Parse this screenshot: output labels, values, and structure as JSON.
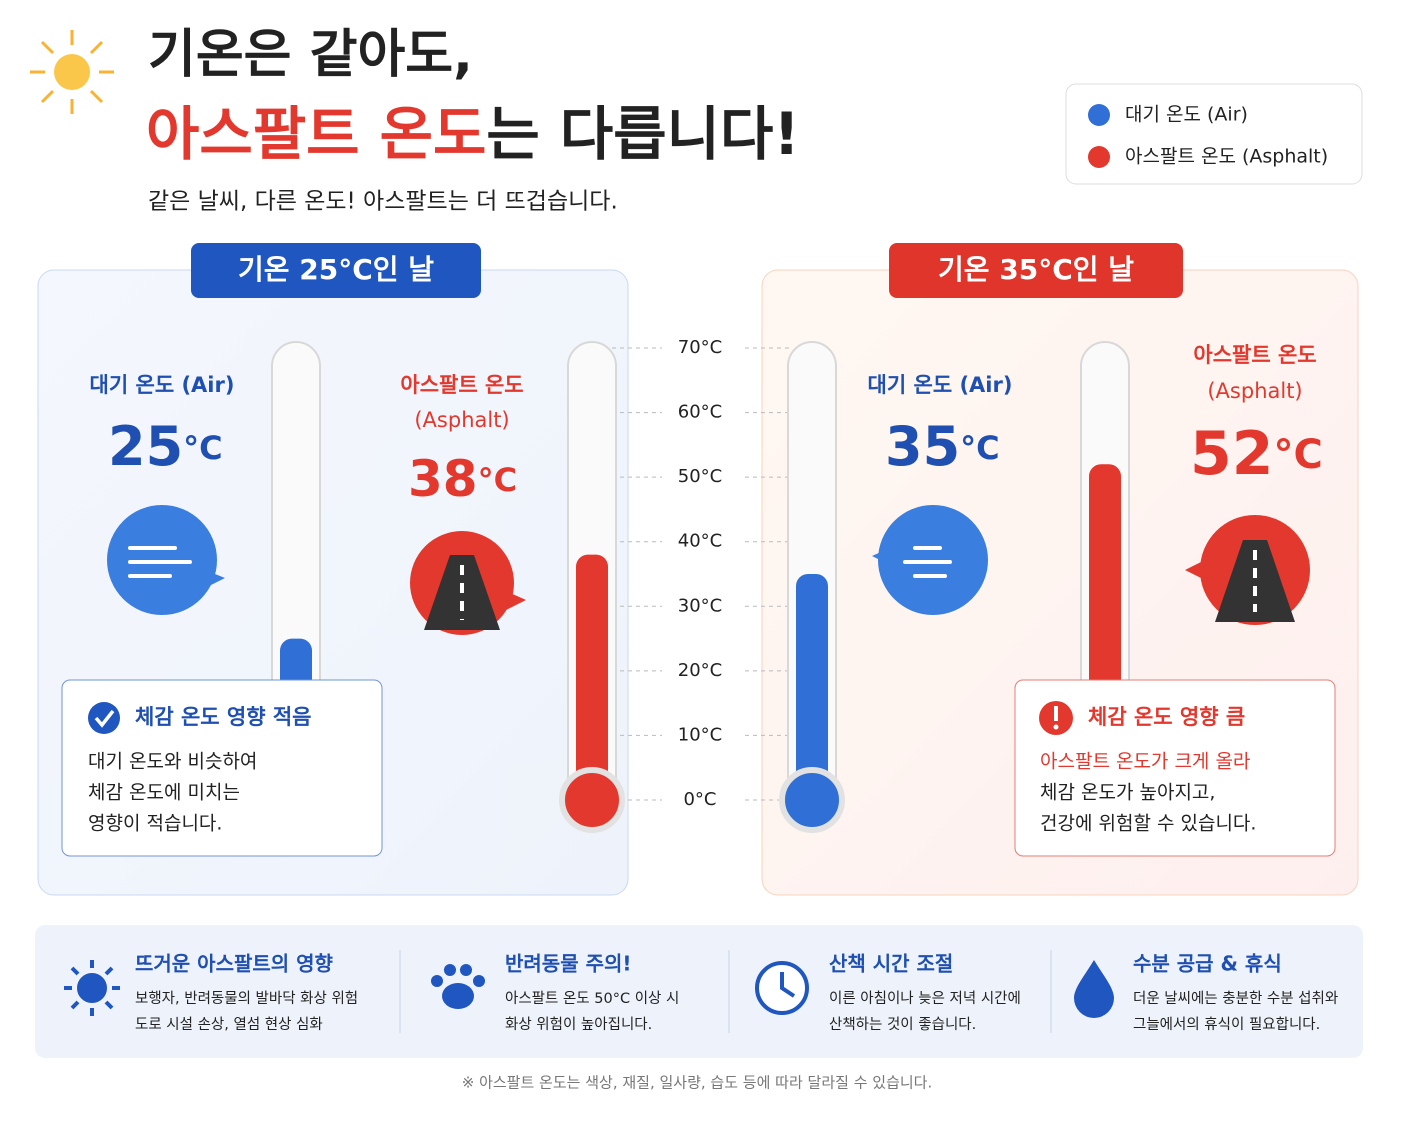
{
  "header": {
    "title_line1": "기온은 같아도,",
    "title_highlight": "아스팔트 온도",
    "title_rest": "는 다릅니다!",
    "subtitle": "같은 날씨, 다른 온도! 아스팔트는 더 뜨겁습니다."
  },
  "legend": [
    {
      "label": "대기 온도 (Air)",
      "color": "#2f6fd6"
    },
    {
      "label": "아스팔트 온도 (Asphalt)",
      "color": "#e2382d"
    }
  ],
  "unit": "°C",
  "scale": {
    "min": 0,
    "max": 70,
    "ticks": [
      {
        "value": 70,
        "label": "70°C"
      },
      {
        "value": 60,
        "label": "60°C"
      },
      {
        "value": 50,
        "label": "50°C"
      },
      {
        "value": 40,
        "label": "40°C"
      },
      {
        "value": 30,
        "label": "30°C"
      },
      {
        "value": 20,
        "label": "20°C"
      },
      {
        "value": 10,
        "label": "10°C"
      },
      {
        "value": 0,
        "label": "0°C"
      }
    ]
  },
  "panels": [
    {
      "badge": "기온 25°C인 날",
      "air": {
        "label": "대기 온도 (Air)",
        "value": 25
      },
      "asphalt": {
        "label": "아스팔트 온도",
        "sublabel": "(Asphalt)",
        "value": 38
      },
      "note": {
        "title": "체감 온도 영향 적음",
        "lines": [
          "대기 온도와 비슷하여",
          "체감 온도에 미치는",
          "영향이 적습니다."
        ]
      }
    },
    {
      "badge": "기온 35°C인 날",
      "air": {
        "label": "대기 온도 (Air)",
        "value": 35
      },
      "asphalt": {
        "label": "아스팔트 온도",
        "sublabel": "(Asphalt)",
        "value": 52
      },
      "note": {
        "title": "체감 온도 영향 큼",
        "lines": [
          "아스팔트 온도가 크게 올라",
          "체감 온도가 높아지고,",
          "건강에 위험할 수 있습니다."
        ]
      }
    }
  ],
  "tips": [
    {
      "title": "뜨거운 아스팔트의 영향",
      "lines": [
        "보행자, 반려동물의 발바닥 화상 위험",
        "도로 시설 손상, 열섬 현상 심화"
      ]
    },
    {
      "title": "반려동물 주의!",
      "lines": [
        "아스팔트 온도 50°C 이상 시",
        "화상 위험이 높아집니다."
      ]
    },
    {
      "title": "산책 시간 조절",
      "lines": [
        "이른 아침이나 늦은 저녁 시간에",
        "산책하는 것이 좋습니다."
      ]
    },
    {
      "title": "수분 공급 & 휴식",
      "lines": [
        "더운 날씨에는 충분한 수분 섭취와",
        "그늘에서의 휴식이 필요합니다."
      ]
    }
  ],
  "footnote": "※ 아스팔트 온도는 색상, 재질, 일사량, 습도 등에 따라 달라질 수 있습니다."
}
